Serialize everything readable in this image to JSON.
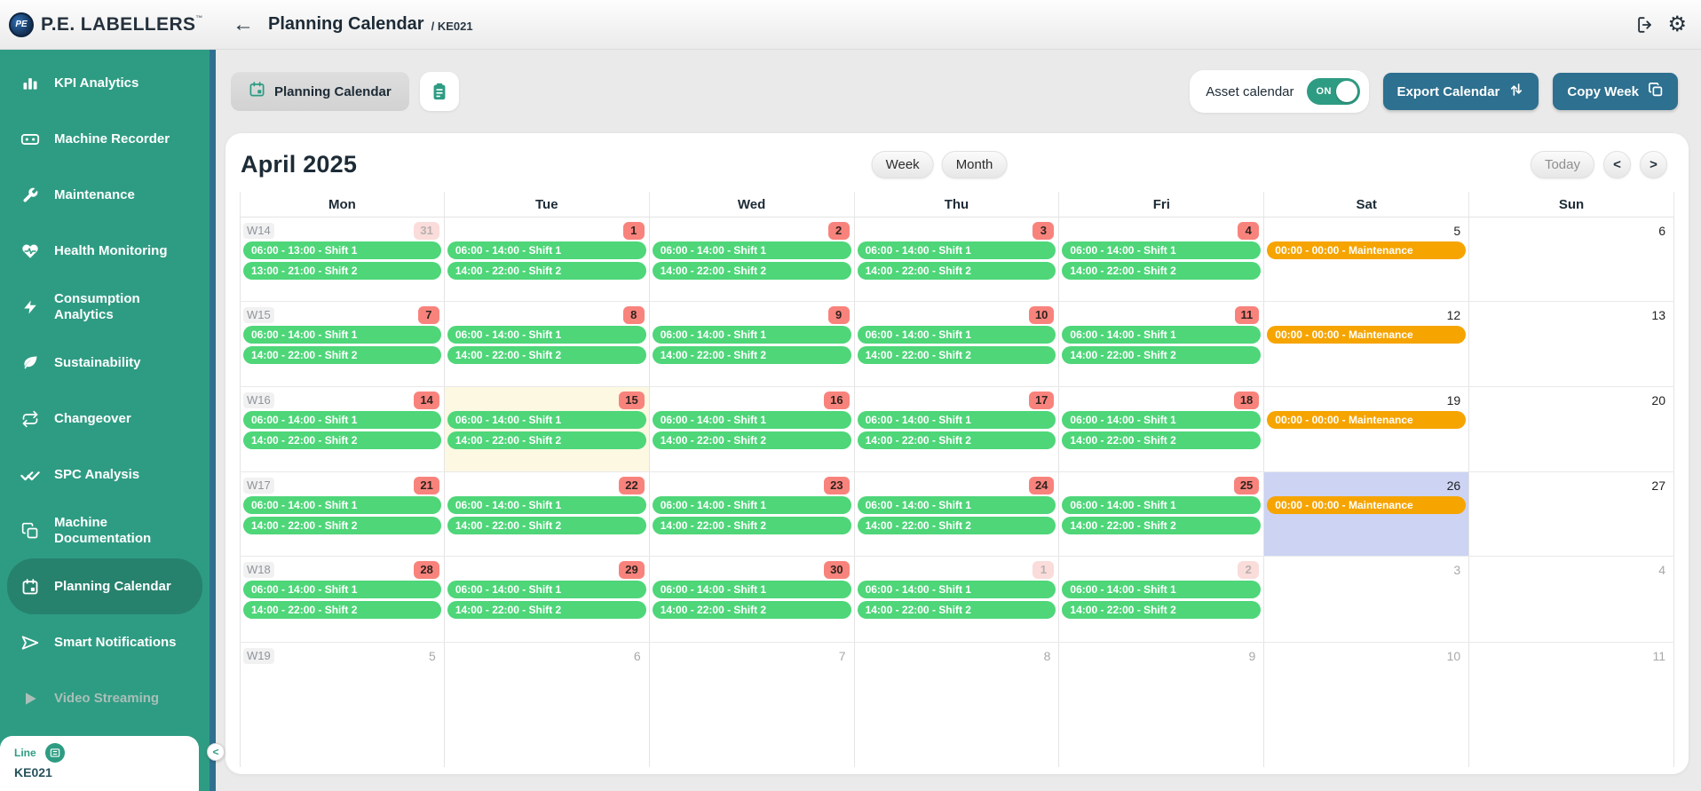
{
  "topbar": {
    "logo_text": "P.E. LABELLERS",
    "logo_tm": "™",
    "logo_monogram": "PE",
    "back": "←",
    "title": "Planning Calendar",
    "subtitle": "/ KE021",
    "settings_glyph": "⚙"
  },
  "sidebar": {
    "items": [
      {
        "label": "KPI Analytics",
        "icon": "bar-chart-icon"
      },
      {
        "label": "Machine Recorder",
        "icon": "cassette-icon"
      },
      {
        "label": "Maintenance",
        "icon": "wrench-icon"
      },
      {
        "label": "Health Monitoring",
        "icon": "heart-pulse-icon"
      },
      {
        "label": "Consumption Analytics",
        "icon": "lightning-icon"
      },
      {
        "label": "Sustainability",
        "icon": "leaf-icon"
      },
      {
        "label": "Changeover",
        "icon": "cycle-icon"
      },
      {
        "label": "SPC Analysis",
        "icon": "double-check-icon"
      },
      {
        "label": "Machine Documentation",
        "icon": "documents-icon"
      },
      {
        "label": "Planning Calendar",
        "icon": "calendar-icon",
        "active": true
      },
      {
        "label": "Smart Notifications",
        "icon": "send-icon"
      },
      {
        "label": "Video Streaming",
        "icon": "play-icon",
        "disabled": true
      }
    ],
    "line_card": {
      "label": "Line",
      "value": "KE021",
      "icon": "list-icon"
    },
    "collapse": "<"
  },
  "toolbar": {
    "tab_label": "Planning Calendar",
    "tab_icon": "calendar-icon",
    "clipboard_icon": "clipboard-icon",
    "asset_calendar_label": "Asset calendar",
    "toggle_state": "ON",
    "export_label": "Export Calendar",
    "export_icon": "up-down-arrows-icon",
    "copy_label": "Copy Week",
    "copy_icon": "copy-icon"
  },
  "calendar": {
    "month_title": "April 2025",
    "view_week": "Week",
    "view_month": "Month",
    "today_label": "Today",
    "prev": "<",
    "next": ">",
    "day_headers": [
      "Mon",
      "Tue",
      "Wed",
      "Thu",
      "Fri",
      "Sat",
      "Sun"
    ],
    "weeks": [
      {
        "label": "W14",
        "days": [
          {
            "num": "31",
            "style": "other",
            "highlight": "",
            "events": [
              {
                "text": "06:00 - 13:00 - Shift 1",
                "color": "green"
              },
              {
                "text": "13:00 - 21:00 - Shift 2",
                "color": "green"
              }
            ]
          },
          {
            "num": "1",
            "style": "current",
            "highlight": "",
            "events": [
              {
                "text": "06:00 - 14:00 - Shift 1",
                "color": "green"
              },
              {
                "text": "14:00 - 22:00 - Shift 2",
                "color": "green"
              }
            ]
          },
          {
            "num": "2",
            "style": "current",
            "highlight": "",
            "events": [
              {
                "text": "06:00 - 14:00 - Shift 1",
                "color": "green"
              },
              {
                "text": "14:00 - 22:00 - Shift 2",
                "color": "green"
              }
            ]
          },
          {
            "num": "3",
            "style": "current",
            "highlight": "",
            "events": [
              {
                "text": "06:00 - 14:00 - Shift 1",
                "color": "green"
              },
              {
                "text": "14:00 - 22:00 - Shift 2",
                "color": "green"
              }
            ]
          },
          {
            "num": "4",
            "style": "current",
            "highlight": "",
            "events": [
              {
                "text": "06:00 - 14:00 - Shift 1",
                "color": "green"
              },
              {
                "text": "14:00 - 22:00 - Shift 2",
                "color": "green"
              }
            ]
          },
          {
            "num": "5",
            "style": "plain",
            "highlight": "",
            "events": [
              {
                "text": "00:00 - 00:00 - Maintenance",
                "color": "orange"
              }
            ]
          },
          {
            "num": "6",
            "style": "plain",
            "highlight": "",
            "events": []
          }
        ]
      },
      {
        "label": "W15",
        "days": [
          {
            "num": "7",
            "style": "current",
            "highlight": "",
            "events": [
              {
                "text": "06:00 - 14:00 - Shift 1",
                "color": "green"
              },
              {
                "text": "14:00 - 22:00 - Shift 2",
                "color": "green"
              }
            ]
          },
          {
            "num": "8",
            "style": "current",
            "highlight": "",
            "events": [
              {
                "text": "06:00 - 14:00 - Shift 1",
                "color": "green"
              },
              {
                "text": "14:00 - 22:00 - Shift 2",
                "color": "green"
              }
            ]
          },
          {
            "num": "9",
            "style": "current",
            "highlight": "",
            "events": [
              {
                "text": "06:00 - 14:00 - Shift 1",
                "color": "green"
              },
              {
                "text": "14:00 - 22:00 - Shift 2",
                "color": "green"
              }
            ]
          },
          {
            "num": "10",
            "style": "current",
            "highlight": "",
            "events": [
              {
                "text": "06:00 - 14:00 - Shift 1",
                "color": "green"
              },
              {
                "text": "14:00 - 22:00 - Shift 2",
                "color": "green"
              }
            ]
          },
          {
            "num": "11",
            "style": "current",
            "highlight": "",
            "events": [
              {
                "text": "06:00 - 14:00 - Shift 1",
                "color": "green"
              },
              {
                "text": "14:00 - 22:00 - Shift 2",
                "color": "green"
              }
            ]
          },
          {
            "num": "12",
            "style": "plain",
            "highlight": "",
            "events": [
              {
                "text": "00:00 - 00:00 - Maintenance",
                "color": "orange"
              }
            ]
          },
          {
            "num": "13",
            "style": "plain",
            "highlight": "",
            "events": []
          }
        ]
      },
      {
        "label": "W16",
        "days": [
          {
            "num": "14",
            "style": "current",
            "highlight": "",
            "events": [
              {
                "text": "06:00 - 14:00 - Shift 1",
                "color": "green"
              },
              {
                "text": "14:00 - 22:00 - Shift 2",
                "color": "green"
              }
            ]
          },
          {
            "num": "15",
            "style": "current",
            "highlight": "today",
            "events": [
              {
                "text": "06:00 - 14:00 - Shift 1",
                "color": "green"
              },
              {
                "text": "14:00 - 22:00 - Shift 2",
                "color": "green"
              }
            ]
          },
          {
            "num": "16",
            "style": "current",
            "highlight": "",
            "events": [
              {
                "text": "06:00 - 14:00 - Shift 1",
                "color": "green"
              },
              {
                "text": "14:00 - 22:00 - Shift 2",
                "color": "green"
              }
            ]
          },
          {
            "num": "17",
            "style": "current",
            "highlight": "",
            "events": [
              {
                "text": "06:00 - 14:00 - Shift 1",
                "color": "green"
              },
              {
                "text": "14:00 - 22:00 - Shift 2",
                "color": "green"
              }
            ]
          },
          {
            "num": "18",
            "style": "current",
            "highlight": "",
            "events": [
              {
                "text": "06:00 - 14:00 - Shift 1",
                "color": "green"
              },
              {
                "text": "14:00 - 22:00 - Shift 2",
                "color": "green"
              }
            ]
          },
          {
            "num": "19",
            "style": "plain",
            "highlight": "",
            "events": [
              {
                "text": "00:00 - 00:00 - Maintenance",
                "color": "orange"
              }
            ]
          },
          {
            "num": "20",
            "style": "plain",
            "highlight": "",
            "events": []
          }
        ]
      },
      {
        "label": "W17",
        "days": [
          {
            "num": "21",
            "style": "current",
            "highlight": "",
            "events": [
              {
                "text": "06:00 - 14:00 - Shift 1",
                "color": "green"
              },
              {
                "text": "14:00 - 22:00 - Shift 2",
                "color": "green"
              }
            ]
          },
          {
            "num": "22",
            "style": "current",
            "highlight": "",
            "events": [
              {
                "text": "06:00 - 14:00 - Shift 1",
                "color": "green"
              },
              {
                "text": "14:00 - 22:00 - Shift 2",
                "color": "green"
              }
            ]
          },
          {
            "num": "23",
            "style": "current",
            "highlight": "",
            "events": [
              {
                "text": "06:00 - 14:00 - Shift 1",
                "color": "green"
              },
              {
                "text": "14:00 - 22:00 - Shift 2",
                "color": "green"
              }
            ]
          },
          {
            "num": "24",
            "style": "current",
            "highlight": "",
            "events": [
              {
                "text": "06:00 - 14:00 - Shift 1",
                "color": "green"
              },
              {
                "text": "14:00 - 22:00 - Shift 2",
                "color": "green"
              }
            ]
          },
          {
            "num": "25",
            "style": "current",
            "highlight": "",
            "events": [
              {
                "text": "06:00 - 14:00 - Shift 1",
                "color": "green"
              },
              {
                "text": "14:00 - 22:00 - Shift 2",
                "color": "green"
              }
            ]
          },
          {
            "num": "26",
            "style": "plain",
            "highlight": "selected",
            "events": [
              {
                "text": "00:00 - 00:00 - Maintenance",
                "color": "orange"
              }
            ]
          },
          {
            "num": "27",
            "style": "plain",
            "highlight": "",
            "events": []
          }
        ]
      },
      {
        "label": "W18",
        "days": [
          {
            "num": "28",
            "style": "current",
            "highlight": "",
            "events": [
              {
                "text": "06:00 - 14:00 - Shift 1",
                "color": "green"
              },
              {
                "text": "14:00 - 22:00 - Shift 2",
                "color": "green"
              }
            ]
          },
          {
            "num": "29",
            "style": "current",
            "highlight": "",
            "events": [
              {
                "text": "06:00 - 14:00 - Shift 1",
                "color": "green"
              },
              {
                "text": "14:00 - 22:00 - Shift 2",
                "color": "green"
              }
            ]
          },
          {
            "num": "30",
            "style": "current",
            "highlight": "",
            "events": [
              {
                "text": "06:00 - 14:00 - Shift 1",
                "color": "green"
              },
              {
                "text": "14:00 - 22:00 - Shift 2",
                "color": "green"
              }
            ]
          },
          {
            "num": "1",
            "style": "other",
            "highlight": "",
            "events": [
              {
                "text": "06:00 - 14:00 - Shift 1",
                "color": "green"
              },
              {
                "text": "14:00 - 22:00 - Shift 2",
                "color": "green"
              }
            ]
          },
          {
            "num": "2",
            "style": "other",
            "highlight": "",
            "events": [
              {
                "text": "06:00 - 14:00 - Shift 1",
                "color": "green"
              },
              {
                "text": "14:00 - 22:00 - Shift 2",
                "color": "green"
              }
            ]
          },
          {
            "num": "3",
            "style": "muted",
            "highlight": "",
            "events": []
          },
          {
            "num": "4",
            "style": "muted",
            "highlight": "",
            "events": []
          }
        ]
      },
      {
        "label": "W19",
        "days": [
          {
            "num": "5",
            "style": "muted",
            "highlight": "",
            "events": []
          },
          {
            "num": "6",
            "style": "muted",
            "highlight": "",
            "events": []
          },
          {
            "num": "7",
            "style": "muted",
            "highlight": "",
            "events": []
          },
          {
            "num": "8",
            "style": "muted",
            "highlight": "",
            "events": []
          },
          {
            "num": "9",
            "style": "muted",
            "highlight": "",
            "events": []
          },
          {
            "num": "10",
            "style": "muted",
            "highlight": "",
            "events": []
          },
          {
            "num": "11",
            "style": "muted",
            "highlight": "",
            "events": []
          }
        ]
      }
    ]
  },
  "colors": {
    "sidebar_teal": "#2E9C83",
    "active_item_teal": "#26826D",
    "steel_blue_button": "#2D7090",
    "event_green": "#4ED679",
    "event_orange": "#F6A400",
    "date_badge_red": "#F8837C",
    "date_badge_faded": "#FADCDA",
    "today_cell_yellow": "#FCF8E2",
    "selected_cell_lavender": "#CCD3F3"
  }
}
